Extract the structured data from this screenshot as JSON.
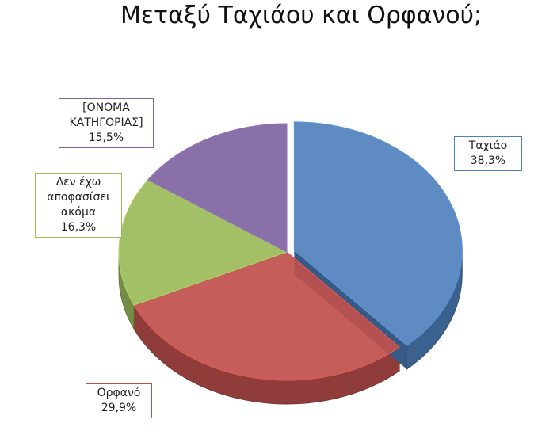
{
  "chart_data": {
    "type": "pie",
    "title": "Μεταξύ Ταχιάου και Ορφανού;",
    "categories": [
      "Ταχιάο",
      "Ορφανό",
      "Δεν έχω αποφασίσει ακόμα",
      "[ΟΝΟΜΑ ΚΑΤΗΓΟΡΙΑΣ]"
    ],
    "values": [
      38.3,
      29.9,
      16.3,
      15.5
    ],
    "value_labels": [
      "38,3%",
      "29,9%",
      "16,3%",
      "15,5%"
    ],
    "colors": [
      "#4f81bd",
      "#c0504d",
      "#9bbb59",
      "#8064a2"
    ]
  }
}
